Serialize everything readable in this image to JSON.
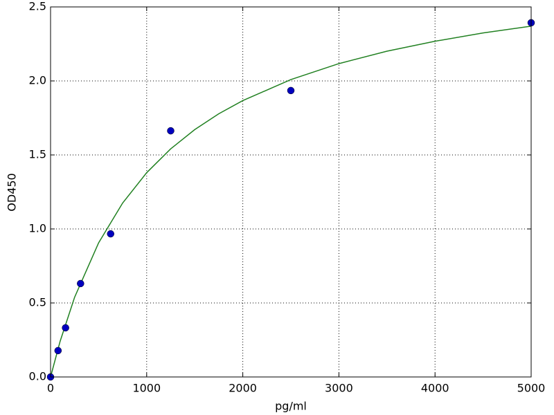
{
  "chart_data": {
    "type": "scatter",
    "xlabel": "pg/ml",
    "ylabel": "OD450",
    "xlim": [
      0,
      5000
    ],
    "ylim": [
      0,
      2.5
    ],
    "xticks": [
      0,
      1000,
      2000,
      3000,
      4000,
      5000
    ],
    "yticks": [
      {
        "value": 0,
        "label": "0.0"
      },
      0.5,
      {
        "value": 1,
        "label": "1.0"
      },
      1.5,
      {
        "value": 2,
        "label": "2.0"
      },
      2.5
    ],
    "grid": true,
    "series": [
      {
        "type": "scatter",
        "color": "#0000bf",
        "x": [
          0,
          78,
          156,
          312,
          625,
          1250,
          2500,
          5000
        ],
        "values": [
          0.0,
          0.178,
          0.332,
          0.631,
          0.967,
          1.663,
          1.935,
          2.393
        ]
      },
      {
        "type": "line",
        "color": "#208020",
        "x": [
          0,
          100,
          250,
          500,
          750,
          1000,
          1250,
          1500,
          1750,
          2000,
          2500,
          3000,
          3500,
          4000,
          4500,
          5000
        ],
        "values": [
          0,
          0.242,
          0.538,
          0.906,
          1.175,
          1.38,
          1.541,
          1.671,
          1.778,
          1.867,
          2.009,
          2.117,
          2.201,
          2.268,
          2.324,
          2.37
        ]
      }
    ]
  }
}
